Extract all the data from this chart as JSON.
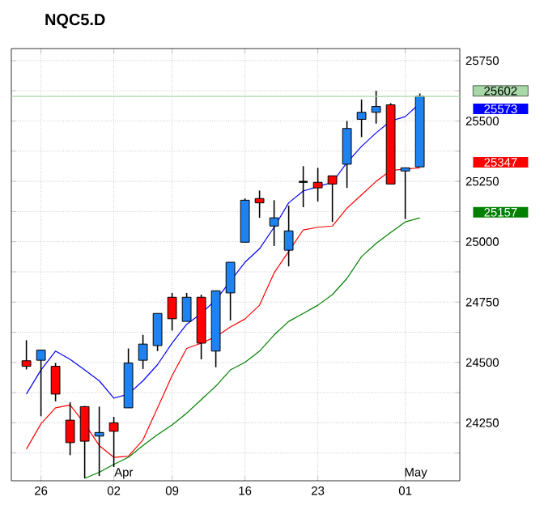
{
  "chart_data": {
    "type": "candlestick",
    "title": "NQC5.D",
    "categories": [
      null,
      "26",
      null,
      null,
      null,
      null,
      "02",
      null,
      null,
      null,
      "09",
      null,
      null,
      null,
      null,
      "16",
      null,
      null,
      null,
      null,
      "23",
      null,
      null,
      null,
      null,
      null,
      "01",
      null
    ],
    "ohlc": [
      [
        24507,
        24592,
        24471,
        24484
      ],
      [
        24509,
        24551,
        24277,
        24551
      ],
      [
        24484,
        24498,
        24339,
        24369
      ],
      [
        24261,
        24335,
        24116,
        24168
      ],
      [
        24317,
        24320,
        24020,
        24174
      ],
      [
        24195,
        24317,
        24030,
        24210
      ],
      [
        24250,
        24275,
        24067,
        24215
      ],
      [
        24312,
        24558,
        24312,
        24498
      ],
      [
        24509,
        24614,
        24473,
        24576
      ],
      [
        24570,
        24703,
        24547,
        24703
      ],
      [
        24770,
        24788,
        24632,
        24681
      ],
      [
        24670,
        24788,
        24670,
        24770
      ],
      [
        24770,
        24781,
        24513,
        24580
      ],
      [
        24547,
        24797,
        24480,
        24797
      ],
      [
        24788,
        24915,
        24674,
        24915
      ],
      [
        24998,
        25179,
        24998,
        25172
      ],
      [
        25179,
        25212,
        25099,
        25161
      ],
      [
        25065,
        25172,
        24982,
        25099
      ],
      [
        24965,
        25149,
        24898,
        25045
      ],
      [
        25248,
        25313,
        25143,
        25248
      ],
      [
        25246,
        25306,
        25167,
        25223
      ],
      [
        25273,
        25273,
        25082,
        25239
      ],
      [
        25321,
        25500,
        25223,
        25469
      ],
      [
        25507,
        25589,
        25433,
        25536
      ],
      [
        25536,
        25625,
        25489,
        25560
      ],
      [
        25567,
        25574,
        25239,
        25239
      ],
      [
        25293,
        25306,
        25094,
        25306
      ],
      [
        25310,
        25614,
        25310,
        25602
      ]
    ],
    "colors": [
      "#ff0000",
      "#1e82f0",
      "#ff0000",
      "#ff0000",
      "#ff0000",
      "#1e82f0",
      "#ff0000",
      "#1e82f0",
      "#1e82f0",
      "#1e82f0",
      "#ff0000",
      "#1e82f0",
      "#ff0000",
      "#1e82f0",
      "#1e82f0",
      "#1e82f0",
      "#ff0000",
      "#1e82f0",
      "#1e82f0",
      "#000000",
      "#ff0000",
      "#ff0000",
      "#1e82f0",
      "#1e82f0",
      "#1e82f0",
      "#ff0000",
      "#1e82f0",
      "#1e82f0"
    ],
    "series": [
      {
        "type": "line",
        "color": "#0000ff",
        "values": [
          24369,
          24469,
          24547,
          24513,
          24469,
          24424,
          24352,
          24369,
          24424,
          24491,
          24580,
          24658,
          24703,
          24759,
          24837,
          24915,
          24971,
          25060,
          25161,
          25210,
          25228,
          25246,
          25328,
          25395,
          25451,
          25500,
          25518,
          25573
        ]
      },
      {
        "type": "line",
        "color": "#ff0000",
        "values": [
          24141,
          24246,
          24312,
          24324,
          24246,
          24156,
          24107,
          24112,
          24179,
          24312,
          24446,
          24558,
          24580,
          24607,
          24647,
          24680,
          24737,
          24871,
          24960,
          25049,
          25060,
          25065,
          25139,
          25194,
          25250,
          25295,
          25301,
          25306
        ]
      },
      {
        "type": "line",
        "color": "#008000",
        "values": [
          null,
          null,
          null,
          null,
          24020,
          24045,
          24078,
          24107,
          24156,
          24201,
          24241,
          24290,
          24346,
          24402,
          24469,
          24500,
          24547,
          24614,
          24670,
          24703,
          24737,
          24781,
          24848,
          24938,
          24993,
          25038,
          25082,
          25099
        ]
      }
    ],
    "ylim": [
      24010,
      25800
    ],
    "yticks": [
      {
        "value": 24125,
        "label": null
      },
      24250,
      {
        "value": 24375,
        "label": null
      },
      24500,
      {
        "value": 24625,
        "label": null
      },
      24750,
      {
        "value": 24875,
        "label": null
      },
      25000,
      {
        "value": 25125,
        "label": null
      },
      25250,
      {
        "value": 25375,
        "label": null
      },
      25500,
      {
        "value": 25625,
        "label": null
      },
      25750
    ],
    "ref_lines": [
      {
        "axis": "y",
        "value": 25602,
        "label": "25602",
        "color": "#a8d8a8"
      }
    ],
    "annotations": [
      "25573",
      "25347",
      "25157",
      {
        "text": "Apr",
        "x": "02"
      },
      "May"
    ],
    "grid": true,
    "marker": "none",
    "line_style": "solid"
  }
}
